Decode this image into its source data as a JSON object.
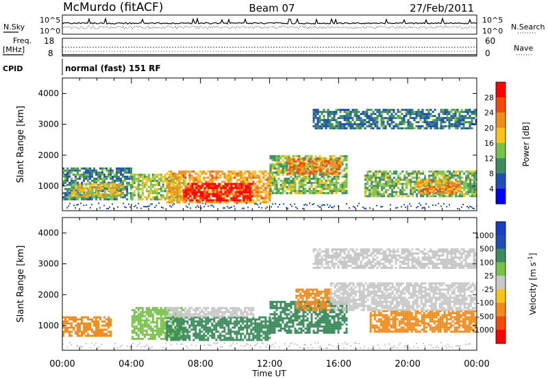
{
  "header": {
    "station": "McMurdo (fitACF)",
    "beam": "Beam 07",
    "date": "27/Feb/2011"
  },
  "params": {
    "nsky_label": "N.Sky",
    "nsearch_label": "N.Search",
    "freq_label_line1": "Freq.",
    "freq_label_line2": "[MHz]",
    "nave_label": "Nave",
    "cpid_label": "CPID",
    "cpid_value": "normal (fast) 151 RF",
    "noise_ticks_left": [
      "10^5",
      "10^0"
    ],
    "noise_ticks_right": [
      "10^5",
      "10^0"
    ],
    "freq_ticks": [
      "18",
      "8"
    ],
    "nave_ticks": [
      "60",
      "0"
    ]
  },
  "colors": {
    "power_scale": [
      "#0000ff",
      "#1f4fb5",
      "#3d8c5e",
      "#79c24a",
      "#f5c31a",
      "#f08c1e",
      "#f24a0d",
      "#ff0000"
    ],
    "velocity_scale": [
      "#ff0000",
      "#f24a0d",
      "#f08c1e",
      "#f5c31a",
      "#c8c8c8",
      "#79c24a",
      "#3d8c5e",
      "#1f4fb5",
      "#1a3cc8"
    ],
    "ground_scatter": "#c8c8c8"
  },
  "chart_data": [
    {
      "type": "heatmap",
      "title": "",
      "xlabel": "Time UT",
      "ylabel": "Slant Range [km]",
      "xlim": [
        "00:00",
        "24:00"
      ],
      "ylim": [
        200,
        4500
      ],
      "x_ticks": [
        "00:00",
        "04:00",
        "08:00",
        "12:00",
        "16:00",
        "20:00",
        "00:00"
      ],
      "y_ticks": [
        1000,
        2000,
        3000,
        4000
      ],
      "colorbar_label": "Power [dB]",
      "colorbar_ticks": [
        "4",
        "8",
        "12",
        "16",
        "20",
        "24",
        "28"
      ],
      "colorbar_range": [
        0,
        30
      ],
      "scatter_bands": [
        {
          "time_start": 0.0,
          "time_end": 4.0,
          "range_low": 600,
          "range_high": 1600,
          "value": 9
        },
        {
          "time_start": 0.5,
          "time_end": 3.5,
          "range_low": 700,
          "range_high": 1100,
          "value": 17
        },
        {
          "time_start": 4.0,
          "time_end": 7.0,
          "range_low": 600,
          "range_high": 1400,
          "value": 14
        },
        {
          "time_start": 6.0,
          "time_end": 12.0,
          "range_low": 500,
          "range_high": 1500,
          "value": 19
        },
        {
          "time_start": 7.0,
          "time_end": 11.0,
          "range_low": 550,
          "range_high": 1100,
          "value": 28
        },
        {
          "time_start": 12.0,
          "time_end": 16.5,
          "range_low": 800,
          "range_high": 2000,
          "value": 13
        },
        {
          "time_start": 13.0,
          "time_end": 16.0,
          "range_low": 1400,
          "range_high": 1900,
          "value": 22
        },
        {
          "time_start": 17.5,
          "time_end": 24.0,
          "range_low": 700,
          "range_high": 1500,
          "value": 12
        },
        {
          "time_start": 20.5,
          "time_end": 23.0,
          "range_low": 800,
          "range_high": 1200,
          "value": 21
        },
        {
          "time_start": 14.5,
          "time_end": 24.0,
          "range_low": 2900,
          "range_high": 3500,
          "value": 8
        }
      ]
    },
    {
      "type": "heatmap",
      "title": "",
      "xlabel": "Time UT",
      "ylabel": "Slant Range [km]",
      "xlim": [
        "00:00",
        "24:00"
      ],
      "ylim": [
        200,
        4500
      ],
      "x_ticks": [
        "00:00",
        "04:00",
        "08:00",
        "12:00",
        "16:00",
        "20:00",
        "00:00"
      ],
      "y_ticks": [
        1000,
        2000,
        3000,
        4000
      ],
      "colorbar_label": "Velocity [m s^-1]",
      "colorbar_ticks": [
        "1000",
        "500",
        "100",
        "25",
        "-25",
        "-100",
        "-500",
        "-1000"
      ],
      "scatter_bands": [
        {
          "time_start": 0.0,
          "time_end": 2.8,
          "range_low": 700,
          "range_high": 1300,
          "value": -300
        },
        {
          "time_start": 4.0,
          "time_end": 7.0,
          "range_low": 600,
          "range_high": 1600,
          "value": 60
        },
        {
          "time_start": 6.0,
          "time_end": 12.0,
          "range_low": 550,
          "range_high": 1300,
          "value": 250
        },
        {
          "time_start": 6.0,
          "time_end": 11.0,
          "range_low": 1300,
          "range_high": 1600,
          "value": 0
        },
        {
          "time_start": 12.0,
          "time_end": 16.5,
          "range_low": 800,
          "range_high": 1800,
          "value": 300
        },
        {
          "time_start": 13.5,
          "time_end": 15.5,
          "range_low": 1500,
          "range_high": 2200,
          "value": -200
        },
        {
          "time_start": 17.8,
          "time_end": 24.0,
          "range_low": 800,
          "range_high": 1500,
          "value": -300
        },
        {
          "time_start": 15.5,
          "time_end": 24.0,
          "range_low": 1500,
          "range_high": 2400,
          "value": 0
        },
        {
          "time_start": 14.5,
          "time_end": 24.0,
          "range_low": 2900,
          "range_high": 3500,
          "value": 0
        }
      ]
    }
  ]
}
